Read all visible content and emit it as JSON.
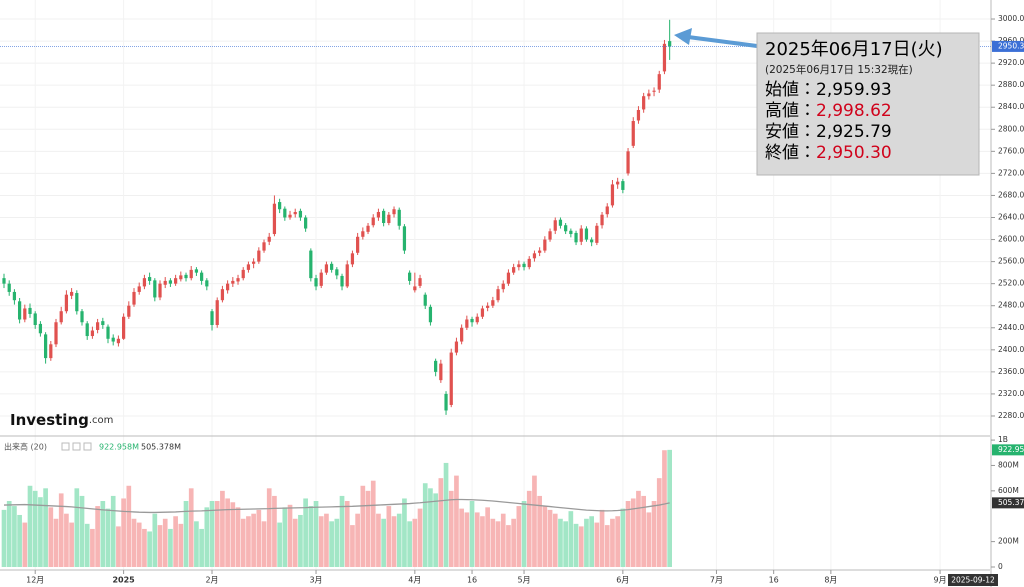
{
  "chart_data": {
    "type": "candlestick",
    "up_color": "#e0514f",
    "down_color": "#26b36e",
    "volume_up_color": "#f7b5b5",
    "volume_down_color": "#a2e6c6",
    "ma_color": "#9a9a9a",
    "grid": true,
    "xlim": [
      -0.77,
      189.6
    ],
    "xticks": [
      {
        "value": 6,
        "label": "12月"
      },
      {
        "value": 23,
        "label": "2025"
      },
      {
        "value": 40,
        "label": "2月"
      },
      {
        "value": 60,
        "label": "3月"
      },
      {
        "value": 79,
        "label": "4月"
      },
      {
        "value": 90,
        "label": "16"
      },
      {
        "value": 100,
        "label": "5月"
      },
      {
        "value": 119,
        "label": "6月"
      },
      {
        "value": 137,
        "label": "7月"
      },
      {
        "value": 148,
        "label": "16"
      },
      {
        "value": 159,
        "label": "8月"
      },
      {
        "value": 180,
        "label": "9月"
      }
    ],
    "x_end_label": "2025-09-12",
    "ylim": [
      2245.5,
      3034.5
    ],
    "yticks": [
      {
        "value": 2280,
        "label": "2280.00"
      },
      {
        "value": 2320,
        "label": "2320.00"
      },
      {
        "value": 2360,
        "label": "2360.00"
      },
      {
        "value": 2400,
        "label": "2400.00"
      },
      {
        "value": 2440,
        "label": "2440.00"
      },
      {
        "value": 2480,
        "label": "2480.00"
      },
      {
        "value": 2520,
        "label": "2520.00"
      },
      {
        "value": 2560,
        "label": "2560.00"
      },
      {
        "value": 2600,
        "label": "2600.00"
      },
      {
        "value": 2640,
        "label": "2640.00"
      },
      {
        "value": 2680,
        "label": "2680.00"
      },
      {
        "value": 2720,
        "label": "2720.00"
      },
      {
        "value": 2760,
        "label": "2760.00"
      },
      {
        "value": 2800,
        "label": "2800.00"
      },
      {
        "value": 2840,
        "label": "2840.00"
      },
      {
        "value": 2880,
        "label": "2880.00"
      },
      {
        "value": 2920,
        "label": "2920.00"
      },
      {
        "value": 2960,
        "label": "2960.00"
      },
      {
        "value": 3000,
        "label": "3000.00"
      }
    ],
    "price_marker": {
      "value": 2950.3,
      "label": "2950.30"
    },
    "watermark": {
      "brand": "Investing",
      "suffix": ".com"
    },
    "candles": [
      [
        2530,
        2538,
        2512,
        2520
      ],
      [
        2520,
        2526,
        2498,
        2505
      ],
      [
        2505,
        2510,
        2482,
        2490
      ],
      [
        2488,
        2494,
        2448,
        2455
      ],
      [
        2455,
        2482,
        2450,
        2475
      ],
      [
        2476,
        2484,
        2458,
        2465
      ],
      [
        2466,
        2470,
        2438,
        2445
      ],
      [
        2447,
        2452,
        2424,
        2430
      ],
      [
        2428,
        2432,
        2375,
        2385
      ],
      [
        2385,
        2416,
        2380,
        2410
      ],
      [
        2410,
        2456,
        2405,
        2450
      ],
      [
        2450,
        2478,
        2446,
        2470
      ],
      [
        2470,
        2508,
        2466,
        2500
      ],
      [
        2498,
        2512,
        2492,
        2505
      ],
      [
        2503,
        2508,
        2464,
        2470
      ],
      [
        2470,
        2474,
        2444,
        2450
      ],
      [
        2448,
        2452,
        2418,
        2425
      ],
      [
        2425,
        2442,
        2420,
        2435
      ],
      [
        2436,
        2456,
        2430,
        2450
      ],
      [
        2452,
        2458,
        2438,
        2445
      ],
      [
        2442,
        2446,
        2412,
        2420
      ],
      [
        2422,
        2428,
        2408,
        2415
      ],
      [
        2412,
        2426,
        2406,
        2420
      ],
      [
        2420,
        2466,
        2418,
        2460
      ],
      [
        2460,
        2488,
        2456,
        2480
      ],
      [
        2482,
        2512,
        2478,
        2505
      ],
      [
        2505,
        2522,
        2500,
        2515
      ],
      [
        2515,
        2536,
        2510,
        2530
      ],
      [
        2532,
        2540,
        2518,
        2525
      ],
      [
        2526,
        2530,
        2488,
        2495
      ],
      [
        2495,
        2526,
        2490,
        2520
      ],
      [
        2518,
        2532,
        2512,
        2525
      ],
      [
        2526,
        2530,
        2514,
        2520
      ],
      [
        2520,
        2536,
        2516,
        2530
      ],
      [
        2528,
        2542,
        2524,
        2535
      ],
      [
        2536,
        2540,
        2524,
        2530
      ],
      [
        2530,
        2552,
        2526,
        2545
      ],
      [
        2546,
        2550,
        2534,
        2540
      ],
      [
        2540,
        2544,
        2518,
        2525
      ],
      [
        2526,
        2530,
        2508,
        2515
      ],
      [
        2470,
        2474,
        2435,
        2445
      ],
      [
        2445,
        2495,
        2440,
        2490
      ],
      [
        2490,
        2516,
        2486,
        2510
      ],
      [
        2508,
        2526,
        2502,
        2520
      ],
      [
        2520,
        2532,
        2514,
        2525
      ],
      [
        2524,
        2536,
        2518,
        2530
      ],
      [
        2530,
        2550,
        2526,
        2545
      ],
      [
        2545,
        2560,
        2540,
        2555
      ],
      [
        2556,
        2566,
        2548,
        2560
      ],
      [
        2560,
        2586,
        2556,
        2580
      ],
      [
        2580,
        2600,
        2576,
        2595
      ],
      [
        2596,
        2612,
        2590,
        2605
      ],
      [
        2610,
        2680,
        2606,
        2665
      ],
      [
        2668,
        2674,
        2648,
        2655
      ],
      [
        2656,
        2660,
        2634,
        2640
      ],
      [
        2640,
        2652,
        2636,
        2645
      ],
      [
        2646,
        2656,
        2640,
        2650
      ],
      [
        2652,
        2656,
        2634,
        2640
      ],
      [
        2640,
        2644,
        2614,
        2620
      ],
      [
        2580,
        2584,
        2524,
        2530
      ],
      [
        2530,
        2536,
        2508,
        2515
      ],
      [
        2516,
        2546,
        2512,
        2540
      ],
      [
        2540,
        2560,
        2536,
        2555
      ],
      [
        2556,
        2560,
        2540,
        2545
      ],
      [
        2546,
        2550,
        2528,
        2535
      ],
      [
        2534,
        2538,
        2508,
        2515
      ],
      [
        2515,
        2562,
        2512,
        2555
      ],
      [
        2555,
        2580,
        2550,
        2575
      ],
      [
        2576,
        2612,
        2572,
        2605
      ],
      [
        2605,
        2622,
        2600,
        2615
      ],
      [
        2614,
        2630,
        2610,
        2625
      ],
      [
        2626,
        2646,
        2622,
        2640
      ],
      [
        2640,
        2656,
        2634,
        2650
      ],
      [
        2652,
        2656,
        2624,
        2630
      ],
      [
        2630,
        2650,
        2626,
        2645
      ],
      [
        2646,
        2660,
        2640,
        2655
      ],
      [
        2654,
        2658,
        2618,
        2625
      ],
      [
        2624,
        2628,
        2574,
        2580
      ],
      [
        2540,
        2544,
        2518,
        2525
      ],
      [
        2508,
        2540,
        2504,
        2515
      ],
      [
        2516,
        2536,
        2512,
        2530
      ],
      [
        2500,
        2504,
        2474,
        2480
      ],
      [
        2478,
        2482,
        2444,
        2450
      ],
      [
        2380,
        2384,
        2352,
        2360
      ],
      [
        2345,
        2382,
        2340,
        2375
      ],
      [
        2320,
        2325,
        2282,
        2290
      ],
      [
        2300,
        2402,
        2296,
        2395
      ],
      [
        2395,
        2422,
        2390,
        2415
      ],
      [
        2415,
        2446,
        2410,
        2440
      ],
      [
        2440,
        2462,
        2436,
        2455
      ],
      [
        2456,
        2460,
        2442,
        2450
      ],
      [
        2450,
        2466,
        2446,
        2460
      ],
      [
        2460,
        2480,
        2456,
        2475
      ],
      [
        2476,
        2486,
        2470,
        2480
      ],
      [
        2480,
        2496,
        2476,
        2490
      ],
      [
        2490,
        2516,
        2486,
        2510
      ],
      [
        2510,
        2526,
        2504,
        2520
      ],
      [
        2520,
        2546,
        2516,
        2540
      ],
      [
        2540,
        2556,
        2536,
        2550
      ],
      [
        2550,
        2562,
        2544,
        2555
      ],
      [
        2556,
        2560,
        2544,
        2550
      ],
      [
        2550,
        2570,
        2546,
        2565
      ],
      [
        2566,
        2580,
        2560,
        2575
      ],
      [
        2576,
        2586,
        2570,
        2580
      ],
      [
        2580,
        2606,
        2576,
        2600
      ],
      [
        2600,
        2620,
        2596,
        2615
      ],
      [
        2616,
        2640,
        2610,
        2635
      ],
      [
        2636,
        2640,
        2620,
        2625
      ],
      [
        2626,
        2630,
        2610,
        2615
      ],
      [
        2616,
        2620,
        2604,
        2610
      ],
      [
        2612,
        2616,
        2590,
        2595
      ],
      [
        2596,
        2626,
        2590,
        2620
      ],
      [
        2620,
        2624,
        2596,
        2600
      ],
      [
        2600,
        2604,
        2588,
        2595
      ],
      [
        2594,
        2630,
        2590,
        2625
      ],
      [
        2626,
        2650,
        2620,
        2645
      ],
      [
        2646,
        2666,
        2640,
        2660
      ],
      [
        2662,
        2708,
        2658,
        2700
      ],
      [
        2700,
        2712,
        2692,
        2705
      ],
      [
        2706,
        2710,
        2684,
        2690
      ],
      [
        2720,
        2766,
        2716,
        2760
      ],
      [
        2770,
        2822,
        2766,
        2815
      ],
      [
        2816,
        2842,
        2810,
        2835
      ],
      [
        2836,
        2866,
        2830,
        2860
      ],
      [
        2860,
        2872,
        2854,
        2865
      ],
      [
        2868,
        2876,
        2860,
        2870
      ],
      [
        2872,
        2906,
        2866,
        2900
      ],
      [
        2905,
        2962,
        2900,
        2955
      ],
      [
        2959.93,
        2998.62,
        2925.79,
        2950.3
      ]
    ],
    "annotation": {
      "title": "2025年06月17日(火)",
      "subtitle": "(2025年06月17日 15:32現在)",
      "rows": [
        {
          "label": "始値：",
          "value": 2959.93,
          "value_label": "2,959.93",
          "color": "#000000"
        },
        {
          "label": "高値：",
          "value": 2998.62,
          "value_label": "2,998.62",
          "color": "#d0021b"
        },
        {
          "label": "安値：",
          "value": 2925.79,
          "value_label": "2,925.79",
          "color": "#000000"
        },
        {
          "label": "終値：",
          "value": 2950.3,
          "value_label": "2,950.30",
          "color": "#d0021b"
        }
      ]
    },
    "volume": {
      "title": "出来高 (20)",
      "ylim": [
        0,
        1040
      ],
      "yticks": [
        {
          "value": 0,
          "label": "0"
        },
        {
          "value": 200,
          "label": "200M"
        },
        {
          "value": 600,
          "label": "600M"
        },
        {
          "value": 800,
          "label": "800M"
        },
        {
          "value": 1000,
          "label": "1B"
        }
      ],
      "values": [
        450,
        520,
        480,
        410,
        350,
        640,
        600,
        550,
        620,
        470,
        380,
        580,
        420,
        350,
        620,
        560,
        340,
        300,
        480,
        520,
        460,
        560,
        320,
        540,
        640,
        380,
        350,
        300,
        280,
        420,
        330,
        380,
        300,
        400,
        340,
        520,
        620,
        360,
        300,
        470,
        520,
        520,
        600,
        540,
        510,
        470,
        380,
        400,
        420,
        450,
        360,
        620,
        560,
        350,
        470,
        490,
        380,
        410,
        540,
        480,
        520,
        400,
        420,
        360,
        380,
        560,
        520,
        330,
        420,
        640,
        600,
        680,
        420,
        380,
        480,
        400,
        420,
        540,
        360,
        380,
        460,
        660,
        620,
        580,
        700,
        820,
        600,
        720,
        460,
        430,
        520,
        430,
        400,
        470,
        380,
        360,
        420,
        330,
        380,
        480,
        520,
        600,
        720,
        560,
        480,
        450,
        420,
        380,
        360,
        440,
        340,
        320,
        380,
        400,
        350,
        450,
        330,
        380,
        400,
        460,
        520,
        540,
        600,
        560,
        430,
        520,
        700,
        920,
        922.958
      ],
      "ma": [
        488,
        489,
        490,
        491,
        492,
        490,
        488,
        486,
        484,
        482,
        480,
        478,
        476,
        474,
        470,
        466,
        462,
        458,
        454,
        450,
        447,
        444,
        441,
        438,
        436,
        434,
        432,
        431,
        430,
        430,
        431,
        432,
        433,
        434,
        436,
        438,
        440,
        441,
        442,
        444,
        446,
        448,
        450,
        452,
        453,
        454,
        455,
        456,
        457,
        458,
        459,
        460,
        462,
        463,
        464,
        465,
        466,
        467,
        468,
        470,
        471,
        472,
        473,
        474,
        475,
        476,
        477,
        478,
        480,
        482,
        484,
        486,
        488,
        490,
        492,
        494,
        496,
        498,
        500,
        503,
        506,
        510,
        514,
        518,
        522,
        526,
        530,
        532,
        532,
        531,
        530,
        528,
        526,
        523,
        520,
        516,
        512,
        508,
        504,
        500,
        496,
        492,
        488,
        484,
        480,
        476,
        472,
        468,
        464,
        460,
        456,
        452,
        448,
        446,
        444,
        442,
        442,
        443,
        445,
        448,
        452,
        458,
        464,
        470,
        476,
        482,
        488,
        496,
        505.378
      ],
      "last_label": "922.958M",
      "ma_label": "505.378M"
    }
  }
}
